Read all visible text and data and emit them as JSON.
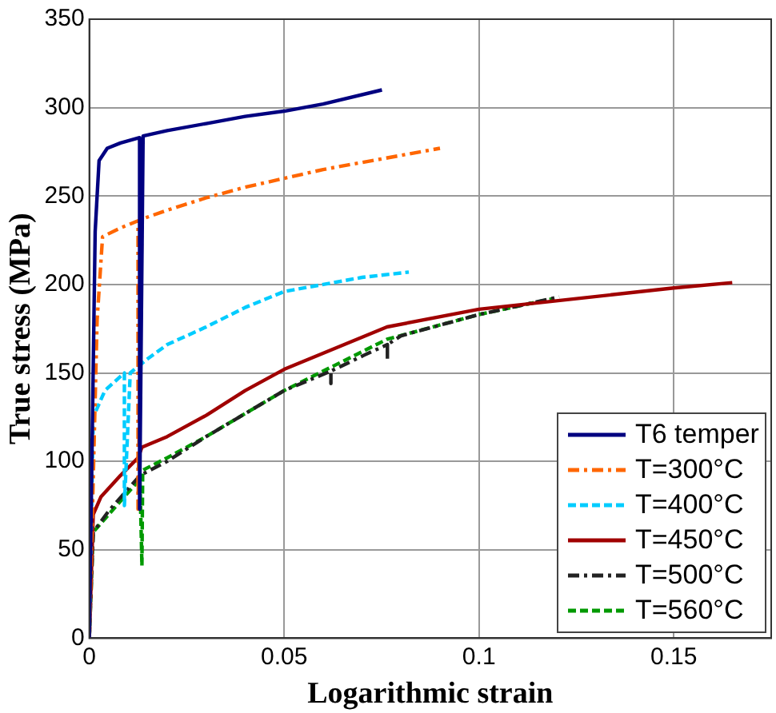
{
  "chart_data": {
    "type": "line",
    "xlabel": "Logarithmic strain",
    "ylabel": "True stress (MPa)",
    "xlim": [
      0,
      0.175
    ],
    "xticks": [
      0,
      0.05,
      0.1,
      0.15
    ],
    "ylim": [
      0,
      350
    ],
    "yticks": [
      0,
      50,
      100,
      150,
      200,
      250,
      300,
      350
    ],
    "grid": true,
    "legend": "bottom right",
    "series": [
      {
        "name": "T6 temper",
        "color": "#000080",
        "line_style": "solid",
        "x": [
          0,
          0.0015,
          0.0025,
          0.0046,
          0.008,
          0.0129,
          0.0129,
          0.0138,
          0.02,
          0.03,
          0.04,
          0.05,
          0.06,
          0.0751
        ],
        "values": [
          0,
          230,
          270,
          277,
          280,
          283,
          73,
          284,
          287,
          291,
          295,
          298,
          302,
          310
        ]
      },
      {
        "name": "T=300°C",
        "color": "#ff6600",
        "line_style": "dashdot",
        "x": [
          0,
          0.002,
          0.0034,
          0.008,
          0.0125,
          0.0125,
          0.0135,
          0.02,
          0.03,
          0.04,
          0.05,
          0.06,
          0.07,
          0.08,
          0.09
        ],
        "values": [
          0,
          180,
          227,
          232,
          236,
          73,
          237,
          242,
          249,
          255,
          260,
          265,
          269,
          273,
          277
        ]
      },
      {
        "name": "T=400°C",
        "color": "#00ccff",
        "line_style": "dashed",
        "x": [
          0,
          0.001,
          0.004,
          0.009,
          0.009,
          0.0105,
          0.015,
          0.02,
          0.03,
          0.04,
          0.05,
          0.06,
          0.07,
          0.082
        ],
        "values": [
          0,
          125,
          140,
          150,
          75,
          150,
          158,
          166,
          176,
          187,
          196,
          200,
          204,
          207
        ]
      },
      {
        "name": "T=450°C",
        "color": "#a00000",
        "line_style": "solid",
        "x": [
          0,
          0.001,
          0.003,
          0.008,
          0.0125,
          0.0135,
          0.02,
          0.03,
          0.04,
          0.05,
          0.0764,
          0.1,
          0.125,
          0.15,
          0.165
        ],
        "values": [
          0,
          70,
          80,
          92,
          102,
          108,
          114,
          126,
          140,
          152,
          176,
          186,
          192,
          198,
          201
        ]
      },
      {
        "name": "T=500°C",
        "color": "#222222",
        "line_style": "dashdot",
        "x": [
          0,
          0.001,
          0.005,
          0.009,
          0.013,
          0.02,
          0.03,
          0.05,
          0.062,
          0.062,
          0.062,
          0.0705,
          0.0765,
          0.0765,
          0.0765,
          0.08,
          0.1,
          0.1206
        ],
        "values": [
          0,
          60,
          72,
          82,
          92,
          100,
          114,
          140,
          151,
          144,
          151,
          160,
          166,
          157,
          166,
          171,
          183,
          193
        ]
      },
      {
        "name": "T=560°C",
        "color": "#009900",
        "line_style": "dashed",
        "x": [
          0,
          0.001,
          0.005,
          0.009,
          0.013,
          0.0135,
          0.0137,
          0.02,
          0.03,
          0.05,
          0.0764,
          0.1,
          0.119
        ],
        "values": [
          0,
          60,
          70,
          80,
          90,
          41,
          95,
          102,
          114,
          140,
          169,
          183,
          192
        ]
      }
    ]
  }
}
